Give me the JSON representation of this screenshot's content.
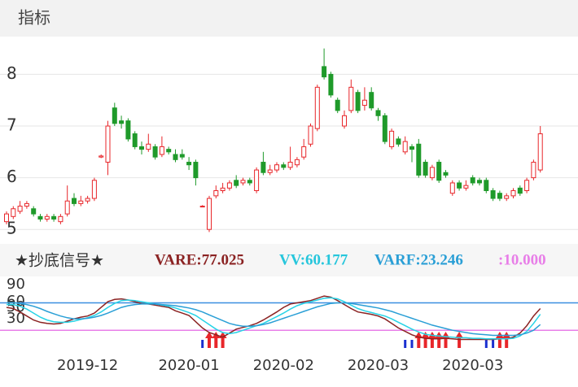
{
  "header": {
    "title": "指标"
  },
  "chart_data": [
    {
      "type": "candlestick",
      "categories": [
        null,
        null,
        null,
        null,
        null,
        null,
        null,
        null,
        null,
        null,
        null,
        null,
        "2019-12",
        null,
        null,
        null,
        null,
        null,
        null,
        null,
        null,
        null,
        null,
        null,
        null,
        null,
        null,
        "2020-01",
        null,
        null,
        null,
        null,
        null,
        null,
        null,
        null,
        null,
        null,
        null,
        null,
        null,
        "2020-02",
        null,
        null,
        null,
        null,
        null,
        null,
        null,
        null,
        null,
        null,
        null,
        null,
        null,
        "2020-03",
        null,
        null,
        null,
        null,
        null,
        null,
        null,
        null,
        null,
        null,
        null,
        null,
        null,
        "2020-03",
        null,
        null,
        null,
        null,
        null,
        null,
        null,
        null,
        null,
        null
      ],
      "open": [
        5.15,
        5.25,
        5.35,
        5.45,
        5.4,
        5.25,
        5.2,
        5.25,
        5.15,
        5.3,
        5.6,
        5.5,
        5.55,
        5.6,
        6.4,
        6.3,
        7.35,
        7.1,
        7.1,
        6.85,
        6.6,
        6.55,
        6.6,
        6.45,
        6.55,
        6.45,
        6.45,
        6.3,
        6.3,
        5.45,
        5.0,
        5.65,
        5.75,
        5.8,
        5.95,
        5.9,
        5.95,
        5.75,
        6.3,
        6.1,
        6.15,
        6.25,
        6.2,
        6.25,
        6.4,
        6.65,
        6.95,
        8.15,
        8.0,
        7.5,
        7.0,
        7.3,
        7.65,
        7.4,
        7.65,
        7.3,
        7.2,
        6.6,
        6.75,
        6.5,
        6.6,
        6.65,
        6.3,
        6.0,
        6.3,
        6.1,
        5.7,
        5.9,
        5.8,
        6.0,
        5.95,
        5.95,
        5.75,
        5.7,
        5.6,
        5.65,
        5.8,
        5.75,
        6.0,
        6.15
      ],
      "high": [
        5.35,
        5.45,
        5.55,
        5.55,
        5.45,
        5.3,
        5.3,
        5.3,
        5.3,
        5.85,
        5.7,
        5.65,
        5.65,
        6.0,
        6.45,
        7.1,
        7.45,
        7.2,
        7.15,
        6.9,
        6.7,
        6.85,
        6.65,
        6.8,
        6.6,
        6.55,
        6.55,
        6.4,
        6.35,
        5.47,
        5.65,
        5.85,
        5.9,
        5.95,
        6.05,
        6.0,
        6.0,
        6.2,
        6.5,
        6.25,
        6.3,
        6.3,
        6.6,
        6.4,
        6.75,
        7.05,
        7.8,
        8.5,
        8.05,
        7.55,
        7.3,
        7.9,
        7.7,
        7.75,
        7.75,
        7.35,
        7.25,
        6.95,
        6.8,
        6.8,
        6.65,
        6.75,
        6.35,
        6.25,
        6.35,
        6.15,
        5.95,
        5.95,
        5.95,
        6.05,
        6.0,
        6.0,
        5.8,
        5.75,
        5.7,
        5.8,
        5.85,
        6.0,
        6.35,
        7.0
      ],
      "low": [
        5.1,
        5.2,
        5.3,
        5.4,
        5.25,
        5.15,
        5.15,
        5.15,
        5.1,
        5.25,
        5.45,
        5.45,
        5.5,
        5.55,
        6.38,
        6.05,
        7.0,
        6.95,
        6.7,
        6.55,
        6.45,
        6.5,
        6.35,
        6.4,
        6.45,
        6.3,
        6.35,
        6.15,
        5.85,
        5.43,
        4.95,
        5.6,
        5.7,
        5.75,
        5.8,
        5.85,
        5.85,
        5.7,
        6.05,
        6.05,
        6.1,
        6.15,
        6.15,
        6.2,
        6.35,
        6.6,
        6.9,
        7.9,
        7.55,
        7.25,
        6.95,
        7.25,
        7.25,
        7.3,
        7.3,
        7.1,
        6.65,
        6.55,
        6.6,
        6.45,
        6.3,
        6.0,
        6.0,
        5.95,
        5.9,
        6.0,
        5.65,
        5.75,
        5.75,
        5.85,
        5.85,
        5.7,
        5.55,
        5.55,
        5.55,
        5.6,
        5.65,
        5.7,
        5.95,
        6.1
      ],
      "close": [
        5.3,
        5.4,
        5.45,
        5.5,
        5.3,
        5.2,
        5.25,
        5.2,
        5.25,
        5.55,
        5.5,
        5.55,
        5.6,
        5.95,
        6.42,
        7.0,
        7.05,
        7.05,
        6.75,
        6.6,
        6.55,
        6.65,
        6.4,
        6.6,
        6.5,
        6.35,
        6.4,
        6.25,
        6.0,
        5.45,
        5.6,
        5.75,
        5.8,
        5.9,
        5.85,
        5.95,
        5.9,
        6.15,
        6.1,
        6.15,
        6.25,
        6.2,
        6.3,
        6.35,
        6.6,
        7.0,
        7.75,
        7.95,
        7.6,
        7.3,
        7.2,
        7.75,
        7.3,
        7.5,
        7.35,
        7.2,
        6.7,
        6.9,
        6.65,
        6.7,
        6.55,
        6.05,
        6.05,
        6.2,
        5.95,
        6.05,
        5.9,
        5.8,
        5.85,
        5.9,
        5.9,
        5.75,
        5.6,
        5.6,
        5.65,
        5.75,
        5.7,
        5.95,
        6.3,
        6.85
      ],
      "up_color": "#e8262a",
      "down_color": "#1f9a2a",
      "ylim": [
        4.72,
        8.73
      ],
      "yticks": [
        5,
        6,
        7,
        8
      ],
      "grid": true
    },
    {
      "type": "line",
      "title": "★抄底信号★",
      "series": [
        {
          "name": "VARE:77.025",
          "color": "#8b2323",
          "values": [
            50,
            48,
            42,
            35,
            28,
            24,
            22,
            21,
            22,
            26,
            30,
            33,
            35,
            40,
            50,
            60,
            64,
            65,
            63,
            60,
            57,
            56,
            54,
            52,
            50,
            44,
            40,
            36,
            25,
            14,
            6,
            2,
            -2,
            5,
            12,
            15,
            18,
            22,
            28,
            35,
            42,
            50,
            56,
            58,
            60,
            62,
            66,
            70,
            68,
            62,
            55,
            48,
            42,
            40,
            38,
            35,
            30,
            22,
            14,
            8,
            2,
            -2,
            -4,
            -5,
            -5,
            -4,
            -5,
            -6,
            -6,
            -6,
            -6,
            -6,
            -6,
            -5,
            -5,
            -2,
            5,
            18,
            35,
            48
          ]
        },
        {
          "name": "VV:60.177",
          "color": "#26d3e6",
          "values": [
            55,
            55,
            52,
            47,
            40,
            33,
            28,
            25,
            24,
            24,
            26,
            29,
            32,
            36,
            42,
            50,
            57,
            62,
            63,
            62,
            60,
            58,
            56,
            54,
            52,
            49,
            45,
            41,
            36,
            28,
            20,
            12,
            6,
            4,
            6,
            10,
            14,
            18,
            22,
            28,
            34,
            40,
            47,
            53,
            57,
            60,
            63,
            66,
            67,
            65,
            60,
            54,
            48,
            44,
            41,
            38,
            35,
            30,
            24,
            18,
            12,
            7,
            3,
            1,
            0,
            -1,
            -2,
            -3,
            -3,
            -4,
            -4,
            -5,
            -5,
            -5,
            -5,
            -4,
            0,
            8,
            22,
            38
          ]
        },
        {
          "name": "VARF:23.246",
          "color": "#2a9fd6",
          "values": [
            58,
            58,
            57,
            55,
            52,
            48,
            43,
            39,
            35,
            32,
            30,
            30,
            31,
            33,
            36,
            40,
            45,
            50,
            53,
            55,
            56,
            56,
            56,
            55,
            54,
            53,
            51,
            49,
            46,
            42,
            37,
            32,
            27,
            22,
            19,
            17,
            17,
            18,
            20,
            23,
            27,
            31,
            35,
            39,
            43,
            47,
            51,
            54,
            57,
            58,
            58,
            57,
            55,
            53,
            51,
            49,
            46,
            43,
            39,
            35,
            31,
            27,
            23,
            19,
            16,
            13,
            10,
            8,
            6,
            4,
            3,
            2,
            1,
            1,
            1,
            1,
            2,
            5,
            10,
            20
          ]
        }
      ],
      "ref_lines": [
        {
          "value": 58,
          "color": "#3a8fe0"
        },
        {
          "name": ":10.000",
          "value": 10,
          "color": "#e87ee8"
        }
      ],
      "red_signals": [
        30,
        31,
        32,
        61,
        62,
        63,
        64,
        65,
        67,
        73,
        74
      ],
      "blue_signals": [
        29,
        59,
        60,
        71,
        72
      ],
      "ylim": [
        -21,
        100
      ],
      "yticks": [
        30,
        50,
        60,
        90
      ]
    }
  ]
}
